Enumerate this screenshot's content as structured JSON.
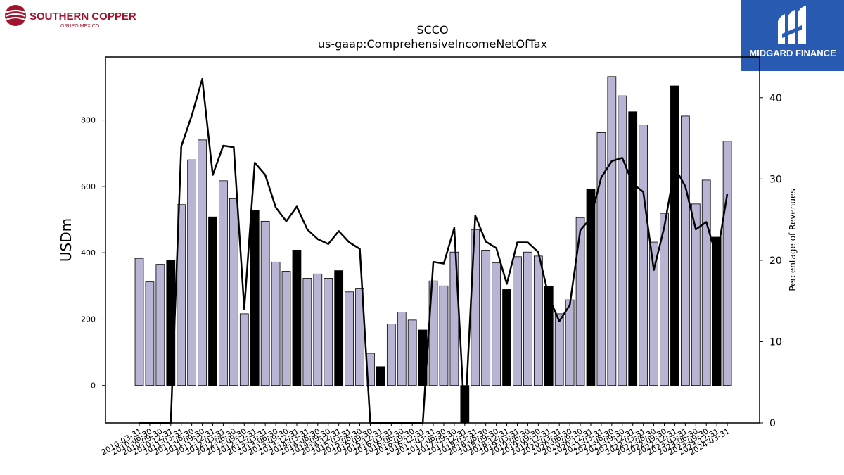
{
  "header": {
    "title": "SCCO",
    "subtitle": "us-gaap:ComprehensiveIncomeNetOfTax"
  },
  "logos": {
    "left_name": "SOUTHERN COPPER",
    "left_sub": "GRUPO MEXICO",
    "right_name": "MIDGARD FINANCE"
  },
  "colors": {
    "bar_light": "#b8b4d4",
    "bar_dark": "#000000",
    "line": "#000000",
    "brand_left": "#a0142d",
    "brand_right": "#2a5bb3"
  },
  "chart_data": {
    "type": "bar",
    "title": "SCCO",
    "subtitle": "us-gaap:ComprehensiveIncomeNetOfTax",
    "ylabel": "USDm",
    "y2label": "Percentage of Revenues",
    "ylim": [
      -113,
      990
    ],
    "y2lim": [
      0,
      45
    ],
    "yticks": [
      0,
      200,
      400,
      600,
      800
    ],
    "y2ticks": [
      0,
      10,
      20,
      30,
      40
    ],
    "categories": [
      "2010-03-31",
      "2010-06-30",
      "2010-09-30",
      "2010-12-31",
      "2011-03-31",
      "2011-06-30",
      "2011-09-30",
      "2011-12-31",
      "2012-03-31",
      "2012-06-30",
      "2012-09-30",
      "2012-12-31",
      "2013-03-31",
      "2013-06-30",
      "2013-09-30",
      "2013-12-31",
      "2014-03-31",
      "2014-06-30",
      "2014-09-30",
      "2014-12-31",
      "2015-03-31",
      "2015-06-30",
      "2015-09-30",
      "2015-12-31",
      "2016-03-31",
      "2016-06-30",
      "2016-09-30",
      "2016-12-31",
      "2017-03-31",
      "2017-06-30",
      "2017-09-30",
      "2017-12-31",
      "2018-03-31",
      "2018-06-30",
      "2018-09-30",
      "2018-12-31",
      "2019-03-31",
      "2019-06-30",
      "2019-09-30",
      "2019-12-31",
      "2020-03-31",
      "2020-06-30",
      "2020-09-30",
      "2020-12-31",
      "2021-03-31",
      "2021-06-30",
      "2021-09-30",
      "2021-12-31",
      "2022-03-31",
      "2022-06-30",
      "2022-09-30",
      "2022-12-31",
      "2023-03-31",
      "2023-06-30",
      "2023-09-30",
      "2023-12-31",
      "2024-03-31"
    ],
    "series": [
      {
        "type": "bar",
        "values": [
          383,
          312,
          365,
          378,
          545,
          680,
          740,
          508,
          617,
          563,
          216,
          527,
          495,
          372,
          344,
          408,
          323,
          336,
          323,
          346,
          282,
          293,
          97,
          57,
          185,
          221,
          197,
          167,
          315,
          300,
          402,
          -113,
          470,
          408,
          370,
          289,
          388,
          402,
          390,
          298,
          216,
          258,
          506,
          591,
          762,
          931,
          873,
          825,
          785,
          432,
          519,
          903,
          812,
          547,
          619,
          447,
          736
        ]
      },
      {
        "type": "line",
        "axis": "right",
        "values": [
          0,
          0,
          0,
          0,
          34,
          37.8,
          42.3,
          30.5,
          34.1,
          33.9,
          14,
          32,
          30.5,
          26.5,
          24.8,
          26.6,
          23.8,
          22.6,
          22,
          23.6,
          22.2,
          21.4,
          0,
          0,
          0,
          0,
          0,
          0,
          19.8,
          19.6,
          24,
          0,
          25.5,
          22.3,
          21.5,
          17.1,
          22.2,
          22.2,
          21,
          15.5,
          12.5,
          14.5,
          23.7,
          25.2,
          30.2,
          32.2,
          32.6,
          29.4,
          28.4,
          18.8,
          24.1,
          31.4,
          29.1,
          23.8,
          24.7,
          20.3,
          28.2
        ]
      }
    ],
    "dark_bar_months": [
      "12-31"
    ],
    "grid": false
  }
}
